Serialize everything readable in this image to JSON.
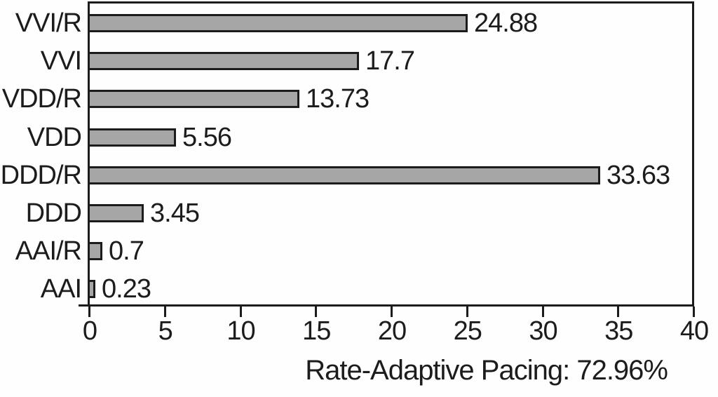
{
  "chart_data": {
    "type": "bar",
    "orientation": "horizontal",
    "categories": [
      "VVI/R",
      "VVI",
      "VDD/R",
      "VDD",
      "DDD/R",
      "DDD",
      "AAI/R",
      "AAI"
    ],
    "values": [
      24.88,
      17.7,
      13.73,
      5.56,
      33.63,
      3.45,
      0.7,
      0.23
    ],
    "value_labels": [
      "24.88",
      "17.7",
      "13.73",
      "5.56",
      "33.63",
      "3.45",
      "0.7",
      "0.23"
    ],
    "title": "",
    "xlabel": "",
    "ylabel": "",
    "xlim": [
      0,
      40
    ],
    "x_ticks": [
      0,
      5,
      10,
      15,
      20,
      25,
      30,
      35,
      40
    ],
    "grid": false,
    "legend_position": "none",
    "annotation": "Rate-Adaptive Pacing: 72.96%",
    "bar_fill_color": "#a6a6a6",
    "bar_border_color": "#1c1c1c",
    "axis_color": "#1c1c1c",
    "text_color": "#1c1c1c"
  }
}
